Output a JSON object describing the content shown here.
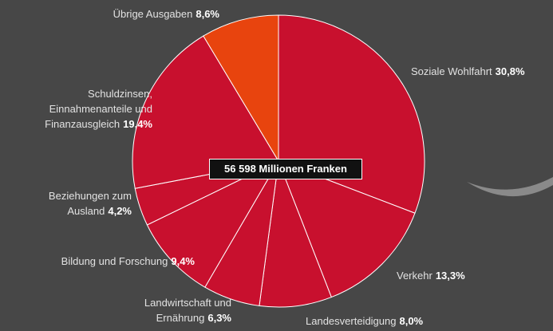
{
  "chart_data": {
    "type": "pie",
    "annotation": "56 598 Millionen Franken",
    "categories": [
      "Soziale Wohlfahrt",
      "Verkehr",
      "Landesverteidigung",
      "Landwirtschaft und\nErnährung",
      "Bildung und Forschung",
      "Beziehungen zum\nAusland",
      "Schuldzinsen,\nEinnahmenanteile und\nFinanzausgleich",
      "Übrige Ausgaben"
    ],
    "values": [
      30.8,
      13.3,
      8.0,
      6.3,
      9.4,
      4.2,
      19.4,
      8.6
    ],
    "value_labels": [
      "30,8%",
      "13,3%",
      "8,0%",
      "6,3%",
      "9,4%",
      "4,2%",
      "19,4%",
      "8,6%"
    ],
    "colors": [
      "#c8102e",
      "#c8102e",
      "#c8102e",
      "#c8102e",
      "#c8102e",
      "#c8102e",
      "#c8102e",
      "#e8440e"
    ]
  }
}
